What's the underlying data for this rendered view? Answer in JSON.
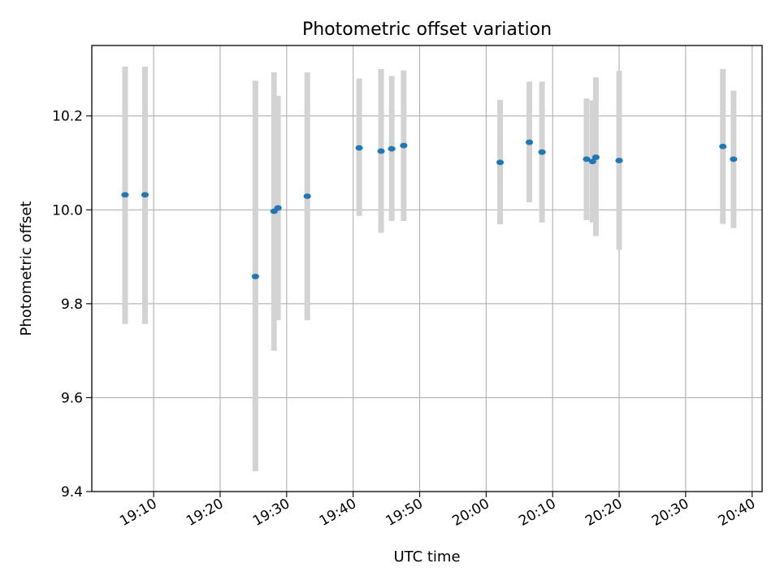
{
  "chart_data": {
    "type": "scatter",
    "title": "Photometric offset variation",
    "xlabel": "UTC time",
    "ylabel": "Photometric offset",
    "xlim": [
      "19:00:42",
      "20:41:30"
    ],
    "ylim": [
      9.4,
      10.35
    ],
    "x_ticks": [
      "19:10",
      "19:20",
      "19:30",
      "19:40",
      "19:50",
      "20:00",
      "20:10",
      "20:20",
      "20:30",
      "20:40"
    ],
    "y_ticks": [
      "9.4",
      "9.6",
      "9.8",
      "10.0",
      "10.2"
    ],
    "grid": true,
    "errorbar_color": "#d3d3d3",
    "marker_color": "#1f77b4",
    "series": [
      {
        "points": [
          {
            "t": "19:05:42",
            "y": 10.032,
            "lo": 9.757,
            "hi": 10.305
          },
          {
            "t": "19:08:42",
            "y": 10.032,
            "lo": 9.757,
            "hi": 10.305
          },
          {
            "t": "19:25:18",
            "y": 9.858,
            "lo": 9.443,
            "hi": 10.275
          },
          {
            "t": "19:28:06",
            "y": 9.997,
            "lo": 9.7,
            "hi": 10.293
          },
          {
            "t": "19:28:42",
            "y": 10.004,
            "lo": 9.765,
            "hi": 10.243
          },
          {
            "t": "19:33:06",
            "y": 10.029,
            "lo": 9.765,
            "hi": 10.293
          },
          {
            "t": "19:40:54",
            "y": 10.132,
            "lo": 9.987,
            "hi": 10.28
          },
          {
            "t": "19:44:12",
            "y": 10.125,
            "lo": 9.951,
            "hi": 10.3
          },
          {
            "t": "19:45:48",
            "y": 10.13,
            "lo": 9.976,
            "hi": 10.285
          },
          {
            "t": "19:47:36",
            "y": 10.137,
            "lo": 9.976,
            "hi": 10.297
          },
          {
            "t": "20:02:06",
            "y": 10.101,
            "lo": 9.969,
            "hi": 10.234
          },
          {
            "t": "20:06:30",
            "y": 10.144,
            "lo": 10.016,
            "hi": 10.273
          },
          {
            "t": "20:08:24",
            "y": 10.123,
            "lo": 9.973,
            "hi": 10.273
          },
          {
            "t": "20:15:06",
            "y": 10.108,
            "lo": 9.978,
            "hi": 10.237
          },
          {
            "t": "20:16:00",
            "y": 10.103,
            "lo": 9.973,
            "hi": 10.233
          },
          {
            "t": "20:16:30",
            "y": 10.112,
            "lo": 9.944,
            "hi": 10.282
          },
          {
            "t": "20:20:00",
            "y": 10.105,
            "lo": 9.915,
            "hi": 10.296
          },
          {
            "t": "20:35:36",
            "y": 10.135,
            "lo": 9.97,
            "hi": 10.3
          },
          {
            "t": "20:37:12",
            "y": 10.108,
            "lo": 9.961,
            "hi": 10.254
          }
        ]
      }
    ]
  }
}
